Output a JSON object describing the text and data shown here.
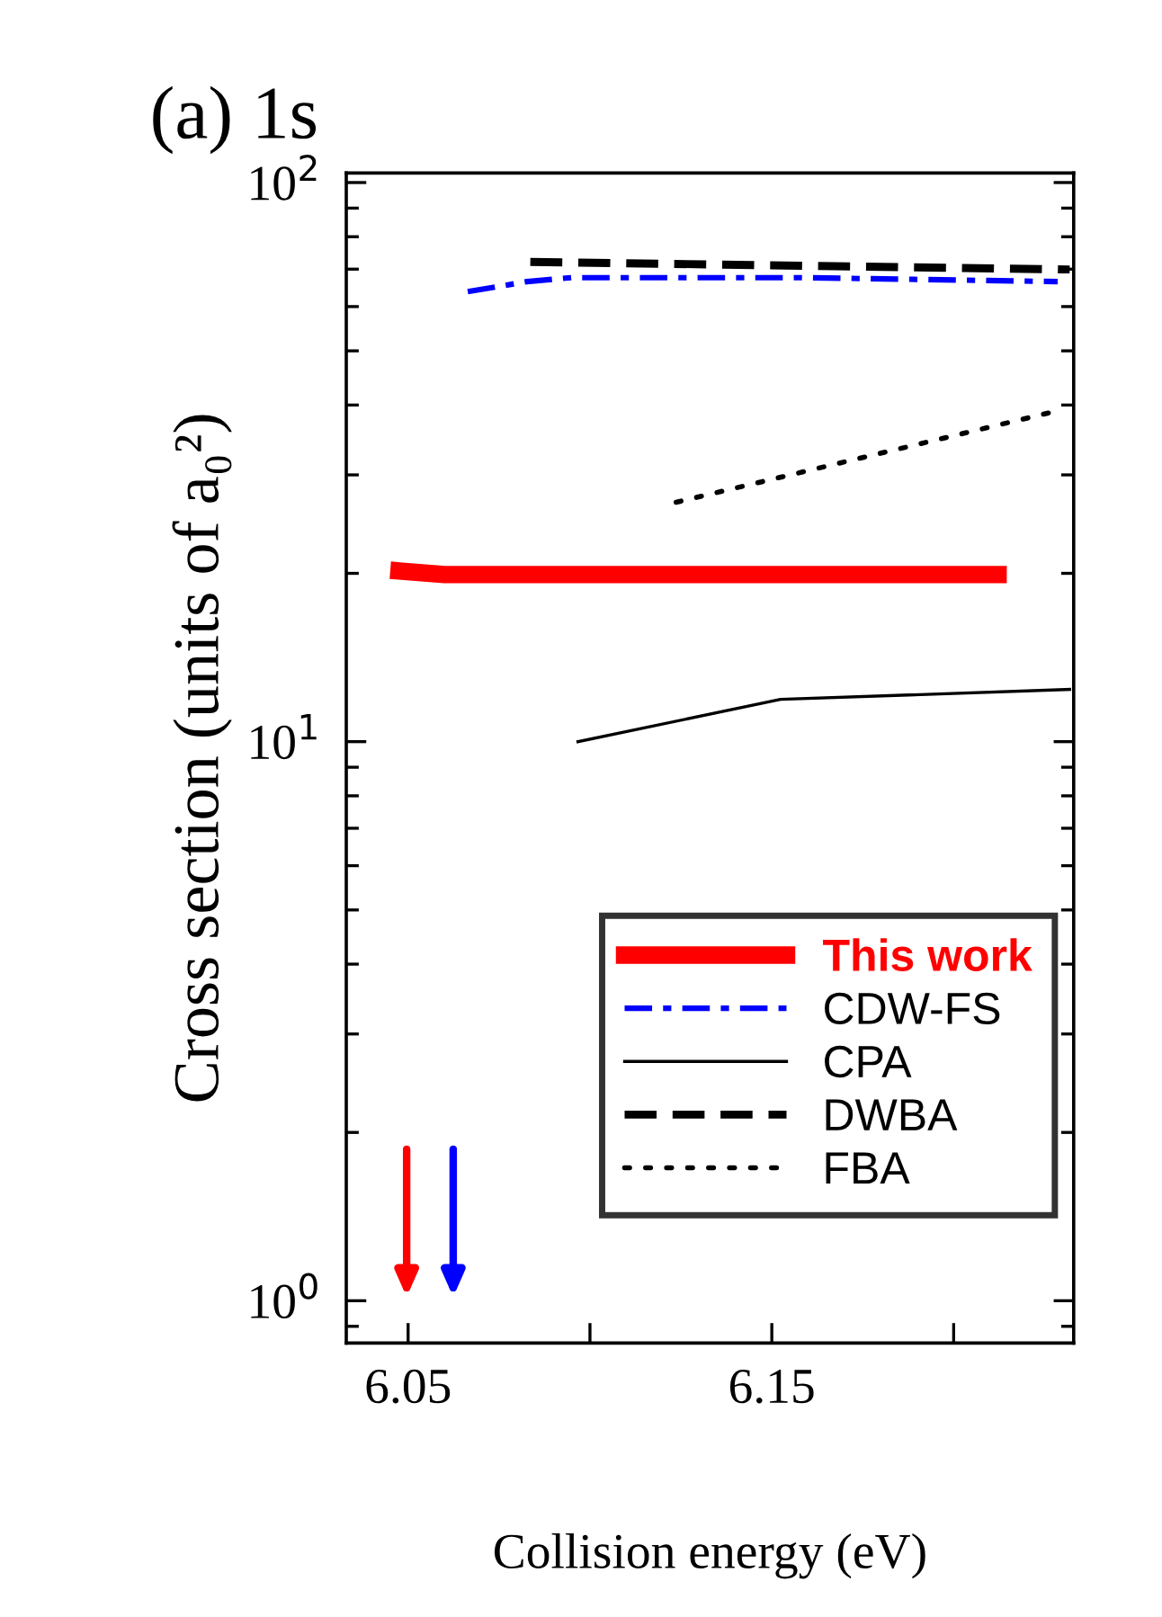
{
  "chart_data": {
    "type": "line",
    "title": "(a) 1s",
    "xlabel": "Collision energy (eV)",
    "ylabel": "Cross section (units of a₀²)",
    "log": "y",
    "xlim": [
      6.033,
      6.233
    ],
    "ylim": [
      0.84,
      104
    ],
    "xticks": [
      6.05,
      {
        "value": 6.1,
        "label": null
      },
      6.15,
      {
        "value": 6.2,
        "label": null
      }
    ],
    "yticks": [
      {
        "value": 1,
        "label": "10$^{0}$"
      },
      {
        "value": 10,
        "label": "10$^{1}$"
      },
      {
        "value": 100,
        "label": "10$^{2}$"
      }
    ],
    "grid": false,
    "legend": "bottom right",
    "marker": "none",
    "series": [
      {
        "name": "This work",
        "color": "#ff0000",
        "line_style": "solid",
        "x": [
          6.0475,
          6.06,
          6.2122
        ],
        "values": [
          20.2,
          19.9,
          19.9
        ]
      },
      {
        "name": "CDW-FS",
        "color": "#0000ff",
        "line_style": "dashdot",
        "x": [
          6.0664,
          6.0827,
          6.095,
          6.158,
          6.2286
        ],
        "values": [
          63.8,
          66.5,
          67.6,
          67.6,
          66.5
        ]
      },
      {
        "name": "CPA",
        "color": "#000000",
        "line_style": "solid",
        "x": [
          6.0967,
          6.1524,
          6.2319
        ],
        "values": [
          10.0,
          11.9,
          12.4
        ]
      },
      {
        "name": "DWBA",
        "color": "#000000",
        "line_style": "dashed",
        "x": [
          6.0836,
          6.158,
          6.2319
        ],
        "values": [
          72.1,
          71,
          69.9
        ]
      },
      {
        "name": "FBA",
        "color": "#000000",
        "line_style": "dotted",
        "x": [
          6.1237,
          6.2267
        ],
        "values": [
          26.8,
          38.8
        ]
      }
    ]
  }
}
